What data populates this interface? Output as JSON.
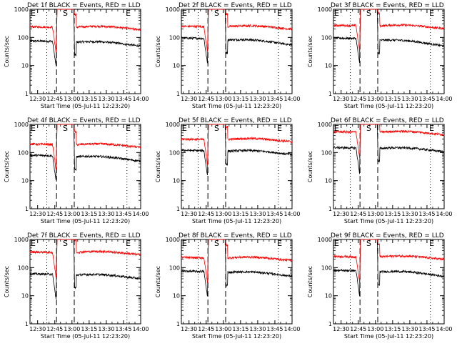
{
  "chart_data": [
    {
      "type": "line",
      "title": "Det 1f BLACK = Events, RED = LLD",
      "xlabel": "Start Time (05-Jul-11 12:23:20)",
      "ylabel": "Counts/sec",
      "xlim": [
        "12:23:20",
        "14:00"
      ],
      "ylim": [
        1,
        1000
      ],
      "log_y": true,
      "xticks": [
        "12:30",
        "12:45",
        "13:00",
        "13:15",
        "13:30",
        "13:45",
        "14:00"
      ],
      "yticks": [
        "1",
        "10",
        "100",
        "1000"
      ],
      "markers": [
        "E",
        "S",
        "E"
      ],
      "series": [
        {
          "color": "#000000",
          "start": 75,
          "end": 55
        },
        {
          "color": "#ff0000",
          "start": 240,
          "end": 210
        }
      ]
    },
    {
      "type": "line",
      "title": "Det 2f BLACK = Events, RED = LLD",
      "xlabel": "Start Time (05-Jul-11 12:23:20)",
      "ylabel": "Counts/sec",
      "xlim": [
        "12:23:20",
        "14:00"
      ],
      "ylim": [
        1,
        1000
      ],
      "log_y": true,
      "xticks": [
        "12:30",
        "12:45",
        "13:00",
        "13:15",
        "13:30",
        "13:45",
        "14:00"
      ],
      "yticks": [
        "1",
        "10",
        "100",
        "1000"
      ],
      "markers": [
        "E",
        "S",
        "E"
      ],
      "series": [
        {
          "color": "#000000",
          "start": 95,
          "end": 60
        },
        {
          "color": "#ff0000",
          "start": 250,
          "end": 220
        }
      ]
    },
    {
      "type": "line",
      "title": "Det 3f BLACK = Events, RED = LLD",
      "xlabel": "Start Time (05-Jul-11 12:23:20)",
      "ylabel": "Counts/sec",
      "xlim": [
        "12:23:20",
        "14:00"
      ],
      "ylim": [
        1,
        1000
      ],
      "log_y": true,
      "xticks": [
        "12:30",
        "12:45",
        "13:00",
        "13:15",
        "13:30",
        "13:45",
        "14:00"
      ],
      "yticks": [
        "1",
        "10",
        "100",
        "1000"
      ],
      "markers": [
        "E",
        "S",
        "E"
      ],
      "series": [
        {
          "color": "#000000",
          "start": 95,
          "end": 55
        },
        {
          "color": "#ff0000",
          "start": 270,
          "end": 230
        }
      ]
    },
    {
      "type": "line",
      "title": "Det 4f BLACK = Events, RED = LLD",
      "xlabel": "Start Time (05-Jul-11 12:23:20)",
      "ylabel": "Counts/sec",
      "xlim": [
        "12:23:20",
        "14:00"
      ],
      "ylim": [
        1,
        1000
      ],
      "log_y": true,
      "xticks": [
        "12:30",
        "12:45",
        "13:00",
        "13:15",
        "13:30",
        "13:45",
        "14:00"
      ],
      "yticks": [
        "1",
        "10",
        "100",
        "1000"
      ],
      "markers": [
        "E",
        "S",
        "E"
      ],
      "series": [
        {
          "color": "#000000",
          "start": 80,
          "end": 55
        },
        {
          "color": "#ff0000",
          "start": 200,
          "end": 170
        }
      ]
    },
    {
      "type": "line",
      "title": "Det 5f BLACK = Events, RED = LLD",
      "xlabel": "Start Time (05-Jul-11 12:23:20)",
      "ylabel": "Counts/sec",
      "xlim": [
        "12:23:20",
        "14:00"
      ],
      "ylim": [
        1,
        1000
      ],
      "log_y": true,
      "xticks": [
        "12:30",
        "12:45",
        "13:00",
        "13:15",
        "13:30",
        "13:45",
        "14:00"
      ],
      "yticks": [
        "1",
        "10",
        "100",
        "1000"
      ],
      "markers": [
        "E",
        "S",
        "E"
      ],
      "series": [
        {
          "color": "#000000",
          "start": 120,
          "end": 95
        },
        {
          "color": "#ff0000",
          "start": 300,
          "end": 270
        }
      ]
    },
    {
      "type": "line",
      "title": "Det 6f BLACK = Events, RED = LLD",
      "xlabel": "Start Time (05-Jul-11 12:23:20)",
      "ylabel": "Counts/sec",
      "xlim": [
        "12:23:20",
        "14:00"
      ],
      "ylim": [
        1,
        1000
      ],
      "log_y": true,
      "xticks": [
        "12:30",
        "12:45",
        "13:00",
        "13:15",
        "13:30",
        "13:45",
        "14:00"
      ],
      "yticks": [
        "1",
        "10",
        "100",
        "1000"
      ],
      "markers": [
        "E",
        "S",
        "E"
      ],
      "series": [
        {
          "color": "#000000",
          "start": 150,
          "end": 120
        },
        {
          "color": "#ff0000",
          "start": 550,
          "end": 480
        }
      ]
    },
    {
      "type": "line",
      "title": "Det 7f BLACK = Events, RED = LLD",
      "xlabel": "Start Time (05-Jul-11 12:23:20)",
      "ylabel": "Counts/sec",
      "xlim": [
        "12:23:20",
        "14:00"
      ],
      "ylim": [
        1,
        1000
      ],
      "log_y": true,
      "xticks": [
        "12:30",
        "12:45",
        "13:00",
        "13:15",
        "13:30",
        "13:45",
        "14:00"
      ],
      "yticks": [
        "1",
        "10",
        "100",
        "1000"
      ],
      "markers": [
        "E",
        "S",
        "E"
      ],
      "series": [
        {
          "color": "#000000",
          "start": 60,
          "end": 45
        },
        {
          "color": "#ff0000",
          "start": 360,
          "end": 320
        }
      ]
    },
    {
      "type": "line",
      "title": "Det 8f BLACK = Events, RED = LLD",
      "xlabel": "Start Time (05-Jul-11 12:23:20)",
      "ylabel": "Counts/sec",
      "xlim": [
        "12:23:20",
        "14:00"
      ],
      "ylim": [
        1,
        1000
      ],
      "log_y": true,
      "xticks": [
        "12:30",
        "12:45",
        "13:00",
        "13:15",
        "13:30",
        "13:45",
        "14:00"
      ],
      "yticks": [
        "1",
        "10",
        "100",
        "1000"
      ],
      "markers": [
        "E",
        "S",
        "E"
      ],
      "series": [
        {
          "color": "#000000",
          "start": 75,
          "end": 55
        },
        {
          "color": "#ff0000",
          "start": 230,
          "end": 200
        }
      ]
    },
    {
      "type": "line",
      "title": "Det 9f BLACK = Events, RED = LLD",
      "xlabel": "Start Time (05-Jul-11 12:23:20)",
      "ylabel": "Counts/sec",
      "xlim": [
        "12:23:20",
        "14:00"
      ],
      "ylim": [
        1,
        1000
      ],
      "log_y": true,
      "xticks": [
        "12:30",
        "12:45",
        "13:00",
        "13:15",
        "13:30",
        "13:45",
        "14:00"
      ],
      "yticks": [
        "1",
        "10",
        "100",
        "1000"
      ],
      "markers": [
        "E",
        "S",
        "E"
      ],
      "series": [
        {
          "color": "#000000",
          "start": 80,
          "end": 55
        },
        {
          "color": "#ff0000",
          "start": 250,
          "end": 220
        }
      ]
    }
  ]
}
